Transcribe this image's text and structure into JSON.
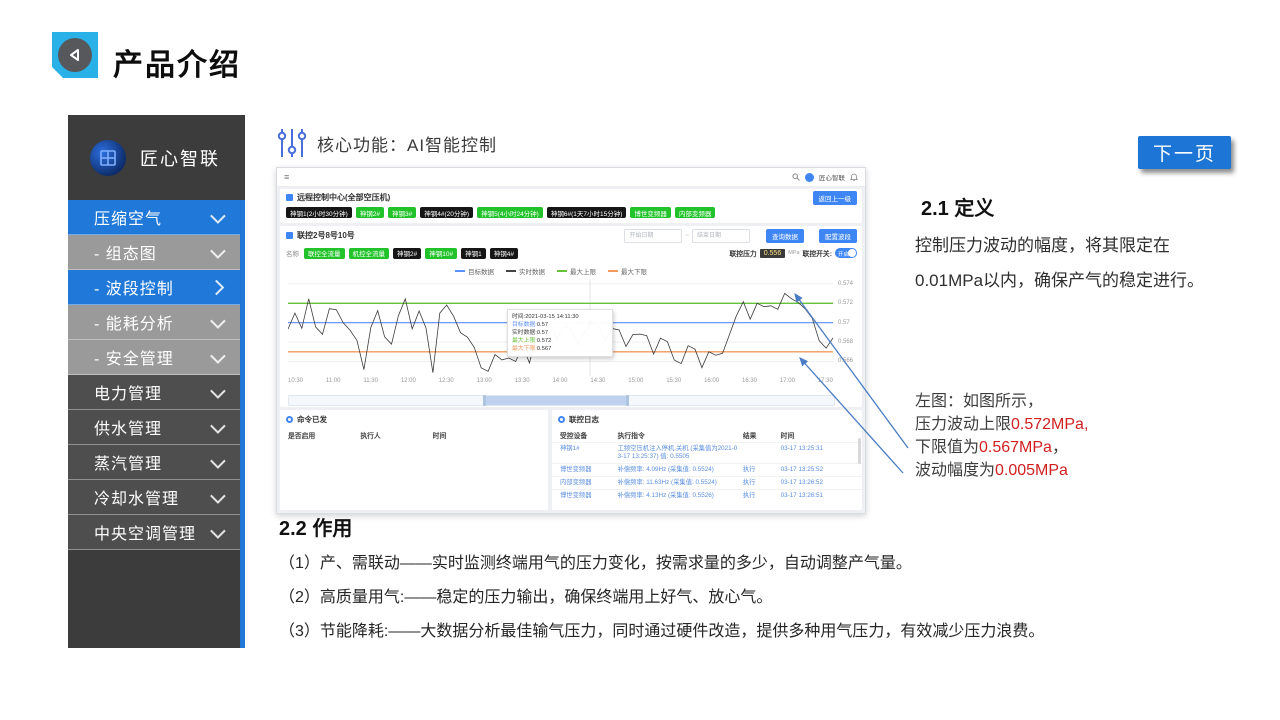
{
  "slide": {
    "title": "产品介绍",
    "next_button": "下一页",
    "core_header": "核心功能：AI智能控制",
    "definition_heading": "2.1 定义",
    "definition_body": "控制压力波动的幅度，将其限定在0.01MPa以内，确保产气的稳定进行。",
    "callout": {
      "line1": "左图：如图所示，",
      "line2_label": "压力波动上限",
      "line2_value": "0.572MPa,",
      "line3_label": "下限值为",
      "line3_value": "0.567MPa",
      "line3_suffix": "，",
      "line4_label": "波动幅度为",
      "line4_value": "0.005MPa"
    },
    "usage_heading": "2.2 作用",
    "usage_items": [
      "（1）产、需联动——实时监测终端用气的压力变化，按需求量的多少，自动调整产气量。",
      "（2）高质量用气:——稳定的压力输出，确保终端用上好气、放心气。",
      "（3）节能降耗:——大数据分析最佳输气压力，同时通过硬件改造，提供多种用气压力，有效减少压力浪费。"
    ],
    "accent_blue": "#1d76d6",
    "value_red": "#d01f1f"
  },
  "sidebar": {
    "brand": "匠心智联",
    "items": [
      {
        "label": "压缩空气",
        "style": "blue",
        "chevron": "down"
      },
      {
        "label": "- 组态图",
        "style": "gray",
        "chevron": "down"
      },
      {
        "label": "- 波段控制",
        "style": "blue",
        "chevron": "right"
      },
      {
        "label": "- 能耗分析",
        "style": "gray",
        "chevron": "down"
      },
      {
        "label": "- 安全管理",
        "style": "gray",
        "chevron": "down"
      },
      {
        "label": "电力管理",
        "style": "dark",
        "chevron": "down"
      },
      {
        "label": "供水管理",
        "style": "dark",
        "chevron": "down"
      },
      {
        "label": "蒸汽管理",
        "style": "dark",
        "chevron": "down"
      },
      {
        "label": "冷却水管理",
        "style": "dark",
        "chevron": "down"
      },
      {
        "label": "中央空调管理",
        "style": "dark",
        "chevron": "down"
      }
    ]
  },
  "dashboard": {
    "topbar": {
      "collapse_icon": "≡",
      "user": "匠心智联"
    },
    "page_header": {
      "title": "远程控制中心(全部空压机)",
      "back_button": "返回上一级"
    },
    "machine_buttons": [
      {
        "label": "神钢1(2小时30分钟)",
        "color": "black"
      },
      {
        "label": "神钢2#",
        "color": "green"
      },
      {
        "label": "神钢3#",
        "color": "green"
      },
      {
        "label": "神钢4#(20分钟)",
        "color": "black"
      },
      {
        "label": "神钢5(4小时24分钟)",
        "color": "green"
      },
      {
        "label": "神钢6#(1天7小时15分钟)",
        "color": "black"
      },
      {
        "label": "博世变频器",
        "color": "green"
      },
      {
        "label": "内部变频器",
        "color": "green"
      }
    ],
    "group_header": {
      "title": "联控2号8号10号",
      "date_start": "开始日期",
      "date_sep": "~",
      "date_end": "结束日期",
      "btn1": "查询数据",
      "btn2": "配置波段"
    },
    "filter_row": {
      "label": "名称",
      "buttons": [
        {
          "label": "联控全流量",
          "color": "green"
        },
        {
          "label": "机控全流量",
          "color": "green"
        },
        {
          "label": "神钢2#",
          "color": "black"
        },
        {
          "label": "神钢10#",
          "color": "green"
        },
        {
          "label": "神钢1",
          "color": "black"
        },
        {
          "label": "神钢4#",
          "color": "black"
        }
      ],
      "pressure_label": "联控压力",
      "pressure_value": "0.556",
      "pressure_unit": "MPa",
      "switch_label": "联控开关:",
      "switch_state": "开启"
    },
    "chart": {
      "type": "line",
      "legend": [
        {
          "name": "目标数据",
          "color": "#5b8ff9"
        },
        {
          "name": "实时数据",
          "color": "#444444"
        },
        {
          "name": "最大上限",
          "color": "#67c23a"
        },
        {
          "name": "最大下限",
          "color": "#f09a5e"
        }
      ],
      "y_ticks": [
        "0.574",
        "0.572",
        "0.57",
        "0.568",
        "0.566"
      ],
      "x_ticks": [
        "10:30",
        "11:00",
        "11:30",
        "12:00",
        "12:30",
        "13:00",
        "13:30",
        "14:00",
        "14:30",
        "15:00",
        "15:30",
        "16:00",
        "16:30",
        "17:00",
        "17:30"
      ],
      "upper_limit": 0.572,
      "target": 0.57,
      "lower_limit": 0.567,
      "y_min": 0.5645,
      "y_max": 0.5745,
      "tooltip": {
        "time": "时间:2021-03-15 14:11:30",
        "rows": [
          {
            "label": "目标数据:",
            "value": "0.57",
            "color": "#5b8ff9"
          },
          {
            "label": "实时数据:",
            "value": "0.57",
            "color": "#444444"
          },
          {
            "label": "最大上限:",
            "value": "0.572",
            "color": "#67c23a"
          },
          {
            "label": "最大下限:",
            "value": "0.567",
            "color": "#f09a5e"
          }
        ]
      },
      "realtime_profile": [
        0.57,
        0.5712,
        0.5692,
        0.5718,
        0.57,
        0.5688,
        0.571,
        0.572,
        0.5702,
        0.569,
        0.5675,
        0.5656,
        0.5695,
        0.5708,
        0.5692,
        0.568,
        0.5705,
        0.5718,
        0.5698,
        0.5712,
        0.569,
        0.5655,
        0.5712,
        0.5716,
        0.57,
        0.5694,
        0.5685,
        0.567,
        0.566,
        0.5652,
        0.5665,
        0.5655,
        0.5668,
        0.566,
        0.5672,
        0.5665,
        0.569,
        0.57,
        0.5694,
        0.5688,
        0.5696,
        0.569,
        0.5684,
        0.5692,
        0.5698,
        0.569,
        0.5686,
        0.5694,
        0.5688,
        0.5682,
        0.569,
        0.5686,
        0.568,
        0.5672,
        0.5684,
        0.5676,
        0.5668,
        0.566,
        0.5674,
        0.5666,
        0.5658,
        0.567,
        0.5662,
        0.5675,
        0.569,
        0.5705,
        0.5715,
        0.5708,
        0.572,
        0.5712,
        0.5724,
        0.5716,
        0.5728,
        0.5718,
        0.5725,
        0.5714,
        0.57,
        0.5688,
        0.5676,
        0.5682
      ]
    },
    "left_panel": {
      "title": "命令已发",
      "headers": [
        "是否启用",
        "执行人",
        "时间"
      ],
      "rows": []
    },
    "right_panel": {
      "title": "联控日志",
      "headers": [
        "受控设备",
        "执行指令",
        "结果",
        "时间"
      ],
      "rows": [
        [
          "神钢1#",
          "工频空压机注入停机.关机 (采集值为2021-03-17 13:25:37) 值: 0.5505",
          "",
          "03-17 13:25:31"
        ],
        [
          "博世变频器",
          "补偿频率: 4.09Hz (采集值: 0.5524)",
          "执行",
          "03-17 13:25:52"
        ],
        [
          "内部变频器",
          "补偿频率: 11.63Hz (采集值: 0.5524)",
          "执行",
          "03-17 13:26:52"
        ],
        [
          "博世变频器",
          "补偿频率: 4.13Hz (采集值: 0.5526)",
          "执行",
          "03-17 13:26:51"
        ]
      ]
    }
  }
}
